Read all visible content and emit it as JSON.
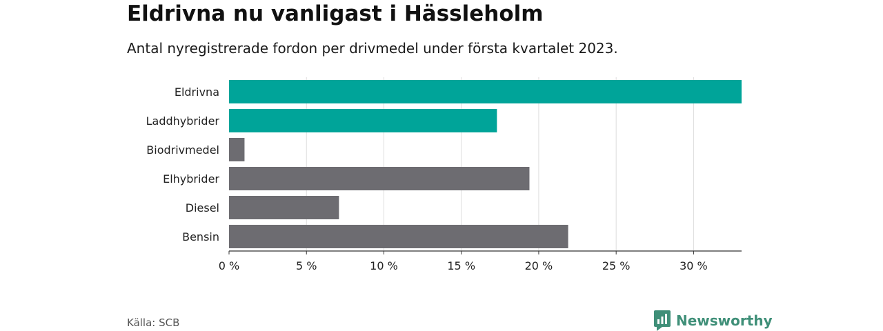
{
  "header": {
    "title": "Eldrivna nu vanligast i Hässleholm",
    "subtitle": "Antal nyregistrerade fordon per drivmedel under första kvartalet 2023."
  },
  "footer": {
    "source": "Källa: SCB",
    "logo_text": "Newsworthy",
    "logo_icon": "bar-chart-speech-bubble-icon"
  },
  "colors": {
    "highlight": "#00a499",
    "default": "#6d6c71",
    "brand": "#3f8f78"
  },
  "chart_data": {
    "type": "bar",
    "orientation": "horizontal",
    "categories": [
      "Eldrivna",
      "Laddhybrider",
      "Biodrivmedel",
      "Elhybrider",
      "Diesel",
      "Bensin"
    ],
    "values": [
      33.1,
      17.3,
      1.0,
      19.4,
      7.1,
      21.9
    ],
    "highlighted": [
      true,
      true,
      false,
      false,
      false,
      false
    ],
    "xticks": [
      0,
      5,
      10,
      15,
      20,
      25,
      30
    ],
    "xtick_labels": [
      "0 %",
      "5 %",
      "10 %",
      "15 %",
      "20 %",
      "25 %",
      "30 %"
    ],
    "xlim": [
      0,
      33.1
    ],
    "grid": true
  }
}
